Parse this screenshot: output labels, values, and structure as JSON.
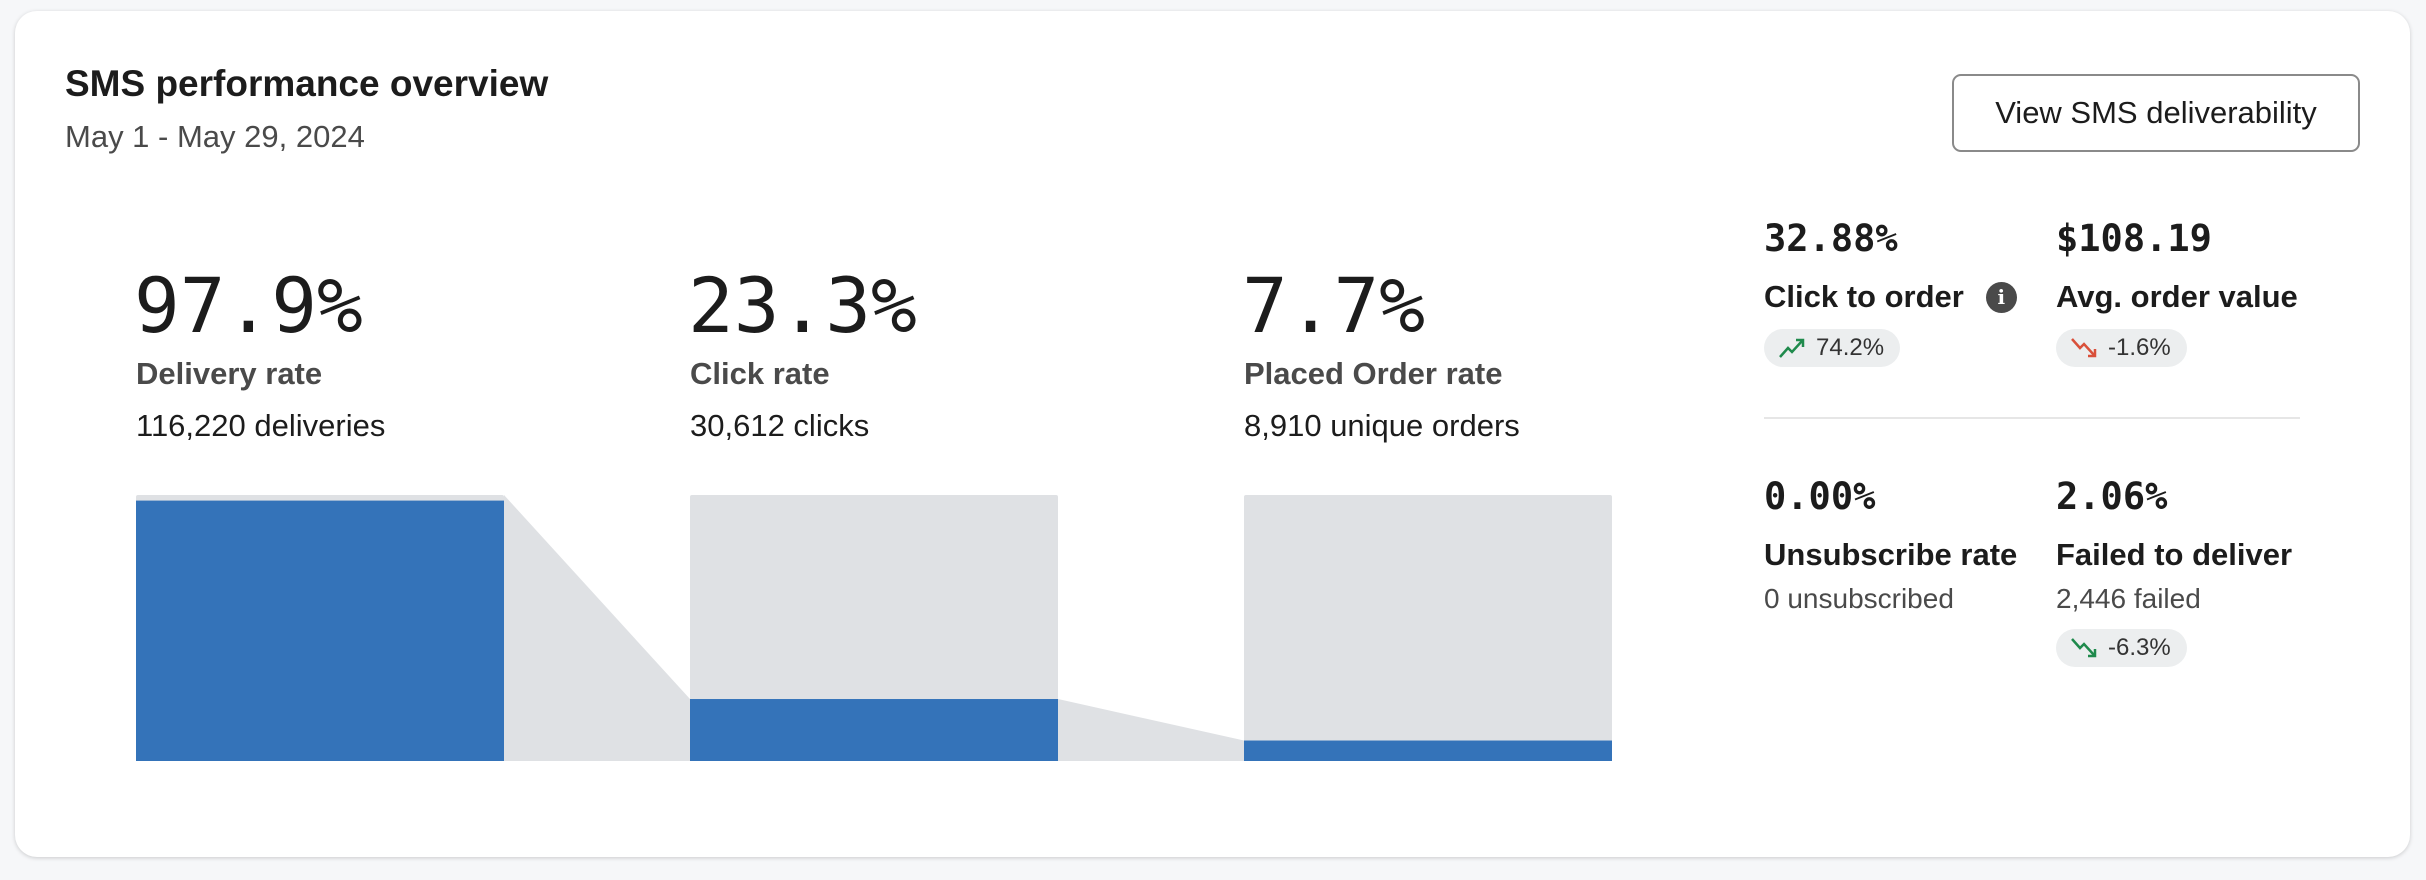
{
  "header": {
    "title": "SMS performance overview",
    "date_range": "May 1 - May 29, 2024",
    "button_label": "View SMS deliverability"
  },
  "funnel": {
    "steps": [
      {
        "value": "97.9%",
        "rate": 97.9,
        "label": "Delivery rate",
        "detail": "116,220 deliveries"
      },
      {
        "value": "23.3%",
        "rate": 23.3,
        "label": "Click rate",
        "detail": "30,612 clicks"
      },
      {
        "value": "7.7%",
        "rate": 7.7,
        "label": "Placed Order rate",
        "detail": "8,910 unique orders"
      }
    ],
    "colors": {
      "fill": "#3473b9",
      "track": "#dfe1e4"
    }
  },
  "kpis": [
    {
      "value": "32.88%",
      "label": "Click to order",
      "info_icon": "info-icon",
      "change": "74.2%",
      "trend": "up",
      "trend_color": "#1f8a4c"
    },
    {
      "value": "$108.19",
      "label": "Avg. order value",
      "change": "-1.6%",
      "trend": "down",
      "trend_color": "#d9503a"
    },
    {
      "value": "0.00%",
      "label": "Unsubscribe rate",
      "detail": "0 unsubscribed"
    },
    {
      "value": "2.06%",
      "label": "Failed to deliver",
      "detail": "2,446 failed",
      "change": "-6.3%",
      "trend": "down",
      "trend_color": "#1f8a4c"
    }
  ]
}
